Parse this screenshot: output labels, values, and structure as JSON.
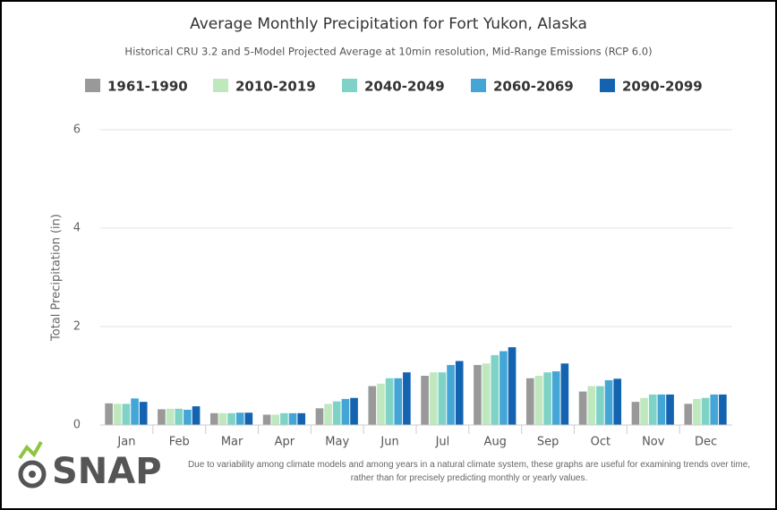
{
  "chart_data": {
    "type": "bar",
    "title": "Average Monthly Precipitation for Fort Yukon, Alaska",
    "subtitle": "Historical CRU 3.2 and 5-Model Projected Average at 10min resolution, Mid-Range Emissions (RCP 6.0)",
    "y_label": "Total Precipitation (in)",
    "categories": [
      "Jan",
      "Feb",
      "Mar",
      "Apr",
      "May",
      "Jun",
      "Jul",
      "Aug",
      "Sep",
      "Oct",
      "Nov",
      "Dec"
    ],
    "series": [
      {
        "name": "1961-1990",
        "color": "#999999",
        "values": [
          0.44,
          0.32,
          0.24,
          0.21,
          0.34,
          0.79,
          1.0,
          1.22,
          0.95,
          0.68,
          0.47,
          0.43
        ]
      },
      {
        "name": "2010-2019",
        "color": "#bfe8bf",
        "values": [
          0.43,
          0.33,
          0.24,
          0.21,
          0.43,
          0.84,
          1.07,
          1.25,
          1.0,
          0.79,
          0.55,
          0.53
        ]
      },
      {
        "name": "2040-2049",
        "color": "#7fd3c6",
        "values": [
          0.43,
          0.33,
          0.24,
          0.24,
          0.48,
          0.95,
          1.07,
          1.42,
          1.07,
          0.79,
          0.62,
          0.55
        ]
      },
      {
        "name": "2060-2069",
        "color": "#44a6d6",
        "values": [
          0.54,
          0.31,
          0.25,
          0.24,
          0.53,
          0.95,
          1.22,
          1.5,
          1.09,
          0.91,
          0.62,
          0.62
        ]
      },
      {
        "name": "2090-2099",
        "color": "#1463b0",
        "values": [
          0.47,
          0.38,
          0.25,
          0.24,
          0.55,
          1.07,
          1.3,
          1.58,
          1.25,
          0.94,
          0.62,
          0.62
        ]
      }
    ],
    "ylim": [
      0,
      6
    ],
    "yticks": [
      0,
      2,
      4,
      6
    ],
    "grid": true
  },
  "footer": {
    "logo": "SNAP",
    "note": "Due to variability among climate models and among years in a natural climate system, these graphs are useful for examining trends over time, rather than for precisely predicting monthly or yearly values."
  }
}
